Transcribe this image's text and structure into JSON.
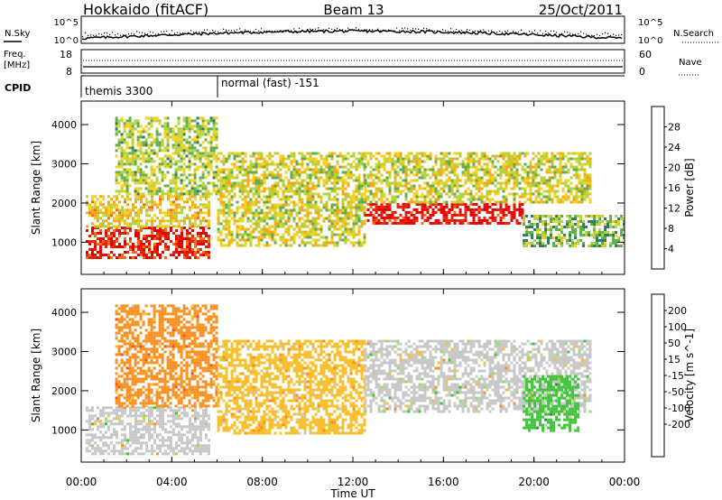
{
  "header": {
    "station": "Hokkaido (fitACF)",
    "beam": "Beam 13",
    "date": "25/Oct/2011"
  },
  "strips": {
    "nsky_label": "N.Sky",
    "nsearch_label": "N.Search",
    "nsky_ticks": [
      "10^5",
      "10^0"
    ],
    "nsearch_ticks": [
      "10^5",
      "10^0"
    ],
    "freq_label": "Freq.",
    "freq_unit": "[MHz]",
    "freq_ticks": [
      "18",
      "8"
    ],
    "nave_label": "Nave",
    "nave_ticks": [
      "60",
      "0"
    ],
    "cpid_label": "CPID",
    "cpid_segments": [
      {
        "name": "themis 3300",
        "start_hour": 0,
        "end_hour": 6
      },
      {
        "name": "normal (fast) -151",
        "start_hour": 6,
        "end_hour": 24
      }
    ]
  },
  "chart_data": [
    {
      "type": "heatmap",
      "title": "",
      "xlabel": "Time UT",
      "ylabel": "Slant Range [km]",
      "x_ticks": [
        "00:00",
        "04:00",
        "08:00",
        "12:00",
        "16:00",
        "20:00",
        "00:00"
      ],
      "xlim_hours": [
        0,
        24
      ],
      "y_ticks": [
        1000,
        2000,
        3000,
        4000
      ],
      "ylim": [
        180,
        4600
      ],
      "colorbar": {
        "label": "Power [dB]",
        "ticks": [
          4,
          8,
          12,
          16,
          20,
          24,
          28
        ],
        "range": [
          0,
          32
        ],
        "colors": [
          "#0000ff",
          "#1e4fb0",
          "#2e7a5e",
          "#5fae4c",
          "#b5d23c",
          "#f7d01d",
          "#fba418",
          "#f76a10",
          "#e82207",
          "#e80000"
        ]
      },
      "regions": [
        {
          "start_hour": 0.2,
          "end_hour": 5.6,
          "range_from_km": 600,
          "range_to_km": 1400,
          "value": 28
        },
        {
          "start_hour": 0.2,
          "end_hour": 5.6,
          "range_from_km": 1400,
          "range_to_km": 2200,
          "value": 18
        },
        {
          "start_hour": 1.5,
          "end_hour": 6.0,
          "range_from_km": 2200,
          "range_to_km": 4200,
          "value": 14
        },
        {
          "start_hour": 6.0,
          "end_hour": 12.5,
          "range_from_km": 900,
          "range_to_km": 3300,
          "value": 16
        },
        {
          "start_hour": 12.5,
          "end_hour": 19.5,
          "range_from_km": 1500,
          "range_to_km": 2000,
          "value": 30
        },
        {
          "start_hour": 12.5,
          "end_hour": 22.5,
          "range_from_km": 2000,
          "range_to_km": 3300,
          "value": 16
        },
        {
          "start_hour": 19.5,
          "end_hour": 24.0,
          "range_from_km": 900,
          "range_to_km": 1700,
          "value": 12
        }
      ]
    },
    {
      "type": "heatmap",
      "title": "",
      "xlabel": "Time UT",
      "ylabel": "Slant Range [km]",
      "x_ticks": [
        "00:00",
        "04:00",
        "08:00",
        "12:00",
        "16:00",
        "20:00",
        "00:00"
      ],
      "xlim_hours": [
        0,
        24
      ],
      "y_ticks": [
        1000,
        2000,
        3000,
        4000
      ],
      "ylim": [
        180,
        4600
      ],
      "colorbar": {
        "label": "Velocity [m s^-1]",
        "ticks": [
          "200",
          "100",
          "50",
          "15",
          "-15",
          "-50",
          "-100",
          "-200"
        ],
        "colors": [
          "#1f3fb8",
          "#2a8c3a",
          "#3fc43a",
          "#8fe05a",
          "#c8c8c8",
          "#c8c8c8",
          "#f8c030",
          "#f89020",
          "#f85010",
          "#e80000"
        ]
      },
      "regions": [
        {
          "start_hour": 0.2,
          "end_hour": 5.6,
          "range_from_km": 400,
          "range_to_km": 1600,
          "value": 0
        },
        {
          "start_hour": 1.5,
          "end_hour": 6.0,
          "range_from_km": 1600,
          "range_to_km": 4200,
          "value": -60
        },
        {
          "start_hour": 6.0,
          "end_hour": 12.5,
          "range_from_km": 900,
          "range_to_km": 3300,
          "value": -40
        },
        {
          "start_hour": 12.5,
          "end_hour": 22.5,
          "range_from_km": 1500,
          "range_to_km": 3300,
          "value": 0
        },
        {
          "start_hour": 19.5,
          "end_hour": 22.0,
          "range_from_km": 1000,
          "range_to_km": 2400,
          "value": 60
        }
      ]
    }
  ]
}
